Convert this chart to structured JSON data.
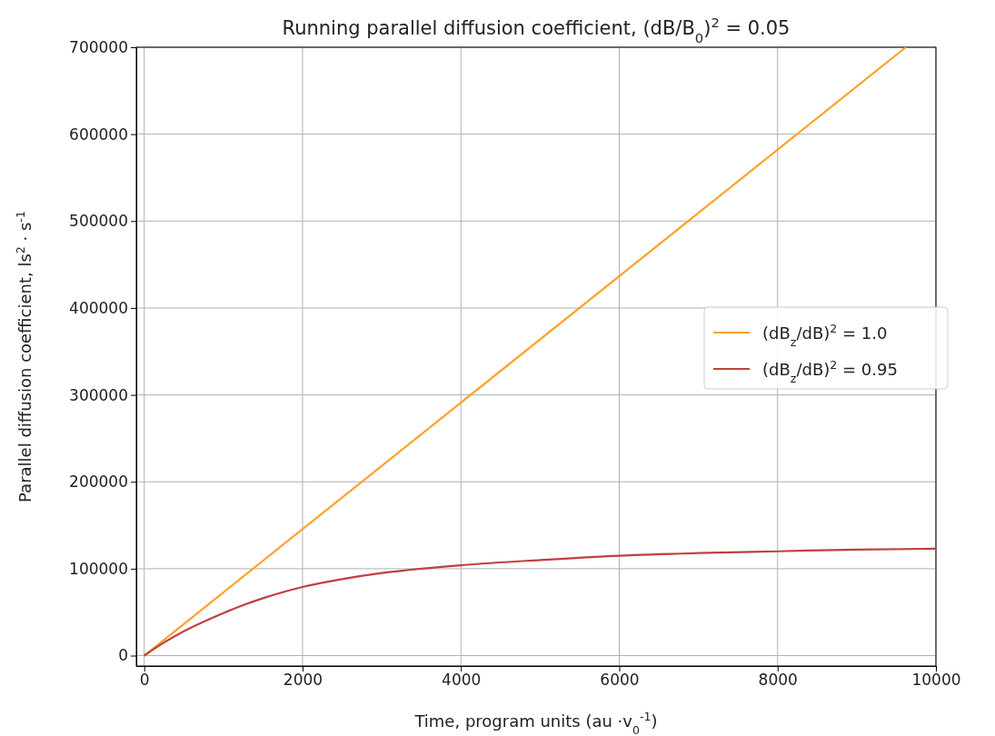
{
  "chart_data": {
    "type": "line",
    "title": "Running parallel diffusion coefficient, (dB/B$_{0}$)$^{2}$ = 0.05",
    "xlabel": "Time, program units (au ·v$_{0}$$^{-1}$)",
    "ylabel": "Parallel diffusion coefficient, ls$^{2}$ · s$^{-1}$",
    "series": [
      {
        "name": "(dB$_{z}$/dB)$^{2}$ = 1.0",
        "color": "#ffa028",
        "x": [
          0,
          9620
        ],
        "values": [
          0,
          700000
        ]
      },
      {
        "name": "(dB$_{z}$/dB)$^{2}$ = 0.95",
        "color": "#c0403e",
        "x": [
          0,
          250,
          500,
          750,
          1000,
          1250,
          1500,
          1750,
          2000,
          2500,
          3000,
          3500,
          4000,
          5000,
          6000,
          7000,
          8000,
          9000,
          10000
        ],
        "values": [
          0,
          15000,
          28000,
          39000,
          49000,
          58000,
          66000,
          73000,
          79000,
          88000,
          95000,
          100000,
          104000,
          110000,
          115000,
          118000,
          120000,
          122000,
          123000
        ]
      }
    ],
    "xlim": [
      -100,
      10000
    ],
    "xticks": [
      0,
      2000,
      4000,
      6000,
      8000,
      10000
    ],
    "ylim": [
      -12000,
      700000
    ],
    "yticks": [
      0,
      100000,
      200000,
      300000,
      400000,
      500000,
      600000,
      700000
    ],
    "grid": true,
    "legend": "right"
  }
}
